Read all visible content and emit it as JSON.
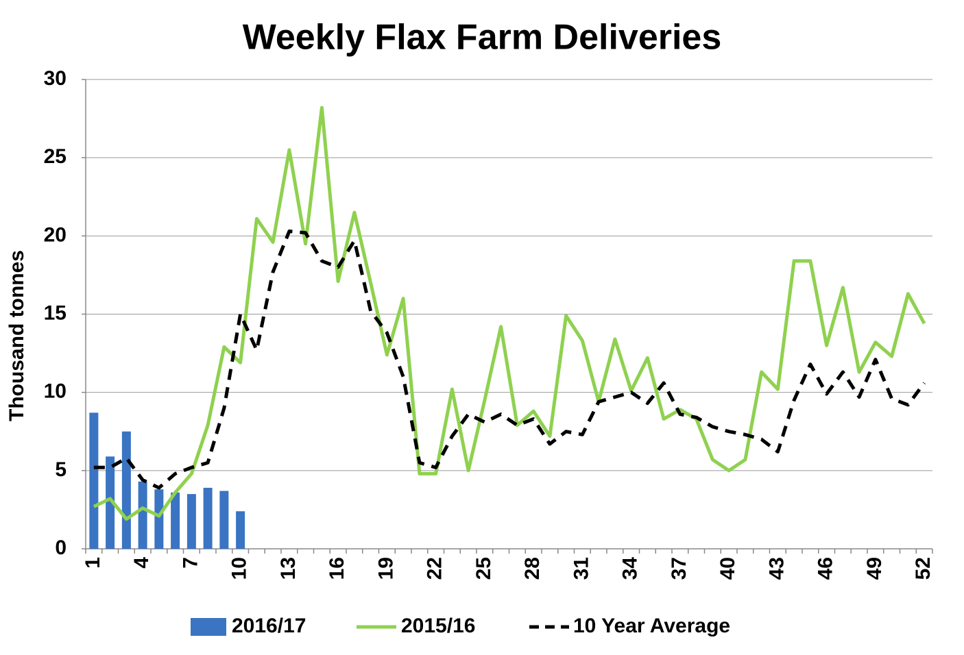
{
  "chart_data": {
    "type": "bar-line",
    "title": "Weekly Flax Farm Deliveries",
    "y_label": "Thousand tonnes",
    "categories": [
      "1",
      null,
      null,
      "4",
      null,
      null,
      "7",
      null,
      null,
      "10",
      null,
      null,
      "13",
      null,
      null,
      "16",
      null,
      null,
      "19",
      null,
      null,
      "22",
      null,
      null,
      "25",
      null,
      null,
      "28",
      null,
      null,
      "31",
      null,
      null,
      "34",
      null,
      null,
      "37",
      null,
      null,
      "40",
      null,
      null,
      "43",
      null,
      null,
      "46",
      null,
      null,
      "49",
      null,
      null,
      "52"
    ],
    "ylim": [
      0,
      30
    ],
    "yticks": [
      0,
      5,
      10,
      15,
      20,
      25,
      30
    ],
    "grid": true,
    "legend": "bottom",
    "series": [
      {
        "name": "2016/17",
        "type": "bar",
        "color": "#3a74c2",
        "values": [
          8.7,
          5.9,
          7.5,
          4.3,
          3.8,
          3.6,
          3.5,
          3.9,
          3.7,
          2.4,
          null,
          null,
          null,
          null,
          null,
          null,
          null,
          null,
          null,
          null,
          null,
          null,
          null,
          null,
          null,
          null,
          null,
          null,
          null,
          null,
          null,
          null,
          null,
          null,
          null,
          null,
          null,
          null,
          null,
          null,
          null,
          null,
          null,
          null,
          null,
          null,
          null,
          null,
          null,
          null,
          null,
          null
        ]
      },
      {
        "name": "2015/16",
        "type": "line",
        "color": "#8fd14f",
        "dashed": false,
        "values": [
          2.7,
          3.2,
          1.9,
          2.6,
          2.1,
          3.6,
          4.8,
          7.9,
          12.9,
          11.9,
          21.1,
          19.6,
          25.5,
          19.5,
          28.2,
          17.1,
          21.5,
          17.0,
          12.4,
          16.0,
          4.8,
          4.8,
          10.2,
          5.0,
          9.5,
          14.2,
          7.9,
          8.8,
          7.2,
          14.9,
          13.3,
          9.4,
          13.4,
          10.1,
          12.2,
          8.3,
          8.9,
          8.3,
          5.7,
          5.0,
          5.7,
          11.3,
          10.2,
          18.4,
          18.4,
          13.0,
          16.7,
          11.3,
          13.2,
          12.3,
          16.3,
          14.4
        ]
      },
      {
        "name": "10 Year Average",
        "type": "line",
        "color": "#000000",
        "dashed": true,
        "values": [
          5.2,
          5.2,
          5.8,
          4.4,
          3.9,
          4.8,
          5.2,
          5.5,
          9.0,
          15.0,
          12.7,
          17.7,
          20.3,
          20.2,
          18.4,
          18.0,
          19.7,
          15.2,
          13.8,
          11.0,
          5.5,
          5.2,
          7.2,
          8.6,
          8.1,
          8.6,
          7.9,
          8.3,
          6.7,
          7.5,
          7.3,
          9.4,
          9.7,
          10.0,
          9.3,
          10.6,
          8.6,
          8.4,
          7.8,
          7.5,
          7.3,
          7.0,
          6.2,
          9.5,
          11.8,
          9.9,
          11.3,
          9.7,
          12.1,
          9.6,
          9.2,
          10.6
        ]
      }
    ]
  }
}
